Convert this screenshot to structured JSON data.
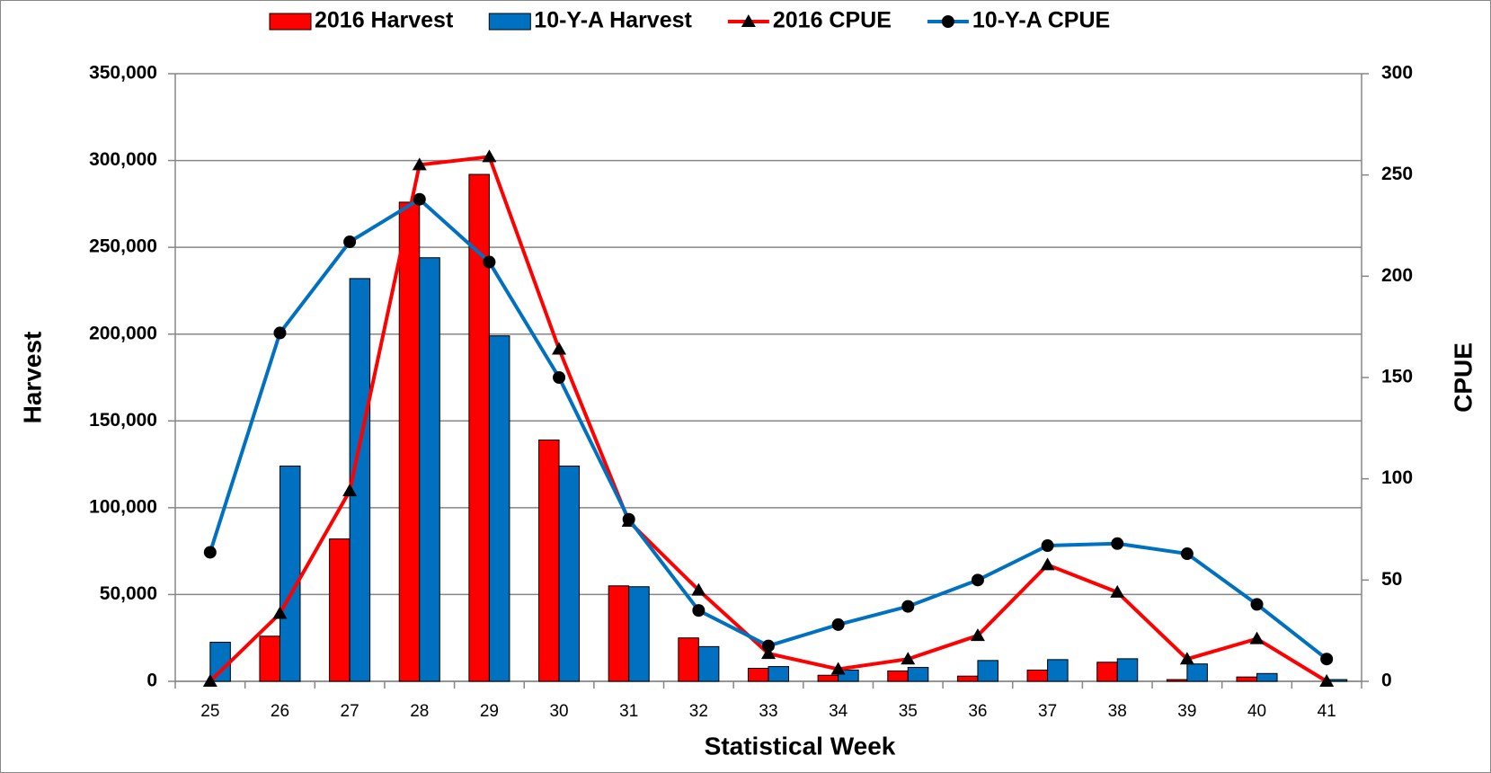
{
  "chart_data": {
    "type": "bar-line",
    "x_label": "Statistical Week",
    "y_label": "Harvest",
    "y2_label": "CPUE",
    "categories": [
      "25",
      "26",
      "27",
      "28",
      "29",
      "30",
      "31",
      "32",
      "33",
      "34",
      "35",
      "36",
      "37",
      "38",
      "39",
      "40",
      "41"
    ],
    "series": [
      {
        "name": "2016 Harvest",
        "type": "bar",
        "color": "#ff0000",
        "axis": "y",
        "values": [
          0,
          26000,
          82000,
          276000,
          292000,
          139000,
          55000,
          25000,
          7500,
          3500,
          6000,
          3000,
          6500,
          11000,
          1000,
          2500,
          0
        ]
      },
      {
        "name": "10-Y-A Harvest",
        "type": "bar",
        "color": "#0070c0",
        "axis": "y",
        "values": [
          22500,
          124000,
          232000,
          244000,
          199000,
          124000,
          54500,
          20000,
          8500,
          6500,
          8000,
          12000,
          12500,
          13000,
          10000,
          4500,
          1000
        ]
      },
      {
        "name": "2016 CPUE",
        "type": "line",
        "marker": "triangle",
        "color": "#ff0000",
        "axis": "y2",
        "values": [
          0,
          33.5,
          94,
          255,
          259,
          164,
          79,
          45,
          13.7,
          6,
          11,
          22.6,
          57.5,
          44,
          11,
          21,
          0
        ]
      },
      {
        "name": "10-Y-A CPUE",
        "type": "line",
        "marker": "circle",
        "color": "#0070c0",
        "axis": "y2",
        "values": [
          63.7,
          172,
          217,
          238,
          207,
          150,
          80,
          35,
          17.5,
          28,
          37,
          50,
          67,
          68,
          63,
          38,
          11
        ]
      }
    ],
    "ylim": [
      0,
      350000
    ],
    "yticks": [
      0,
      {
        "value": 50000,
        "label": "50,000"
      },
      {
        "value": 100000,
        "label": "100,000"
      },
      {
        "value": 150000,
        "label": "150,000"
      },
      {
        "value": 200000,
        "label": "200,000"
      },
      {
        "value": 250000,
        "label": "250,000"
      },
      {
        "value": 300000,
        "label": "300,000"
      },
      {
        "value": 350000,
        "label": "350,000"
      }
    ],
    "y2lim": [
      0,
      300
    ],
    "y2ticks": [
      0,
      50,
      100,
      150,
      200,
      250,
      300
    ],
    "grid": true,
    "legend": "top"
  }
}
